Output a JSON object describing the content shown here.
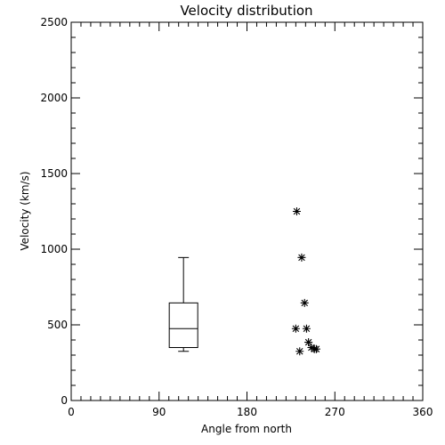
{
  "chart_data": {
    "type": "scatter",
    "title": "Velocity distribution",
    "xlabel": "Angle from north",
    "ylabel": "Velocity (km/s)",
    "xlim": [
      0,
      360
    ],
    "ylim": [
      0,
      2500
    ],
    "x_ticks": [
      "0",
      "90",
      "180",
      "270",
      "360"
    ],
    "y_ticks": [
      "0",
      "500",
      "1000",
      "1500",
      "2000",
      "2500"
    ],
    "x_tick_values": [
      0,
      90,
      180,
      270,
      360
    ],
    "y_tick_values": [
      0,
      500,
      1000,
      1500,
      2000,
      2500
    ],
    "x_minor_step": 10,
    "y_minor_step": 100,
    "grid": false,
    "boxplot": {
      "x": 115,
      "min": 325,
      "q1": 350,
      "median": 475,
      "q3": 645,
      "max": 945
    },
    "points": [
      {
        "x": 231,
        "y": 1250
      },
      {
        "x": 236,
        "y": 945
      },
      {
        "x": 239,
        "y": 645
      },
      {
        "x": 230,
        "y": 475
      },
      {
        "x": 241,
        "y": 475
      },
      {
        "x": 243,
        "y": 385
      },
      {
        "x": 246,
        "y": 350
      },
      {
        "x": 249,
        "y": 340
      },
      {
        "x": 251,
        "y": 340
      },
      {
        "x": 234,
        "y": 325
      }
    ],
    "marker": "asterisk",
    "color": "#000000"
  }
}
